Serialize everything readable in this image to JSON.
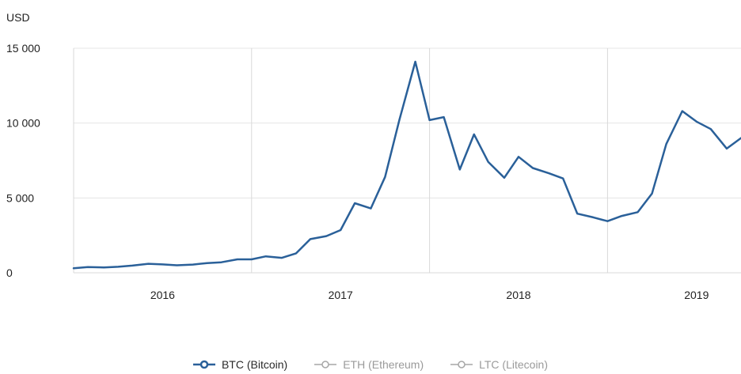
{
  "chart_data": {
    "type": "line",
    "unit_label": "USD",
    "y_ticks": [
      "15 000",
      "10 000",
      "5 000",
      "0"
    ],
    "y_tick_values": [
      15000,
      10000,
      5000,
      0
    ],
    "ylim": [
      0,
      15000
    ],
    "x_ticks": [
      "2016",
      "2017",
      "2018",
      "2019"
    ],
    "x_tick_values": [
      2016.0,
      2017.0,
      2018.0,
      2019.0
    ],
    "xlim": [
      2015.5,
      2019.25
    ],
    "grid": "vertical-and-horizontal",
    "legend_position": "bottom",
    "series": [
      {
        "name": "BTC (Bitcoin)",
        "color": "#2a6099",
        "visible": true,
        "x": [
          2015.5,
          2015.58,
          2015.67,
          2015.75,
          2015.83,
          2015.92,
          2016.0,
          2016.08,
          2016.17,
          2016.25,
          2016.33,
          2016.42,
          2016.5,
          2016.58,
          2016.67,
          2016.75,
          2016.83,
          2016.92,
          2017.0,
          2017.08,
          2017.17,
          2017.25,
          2017.33,
          2017.42,
          2017.5,
          2017.58,
          2017.67,
          2017.75,
          2017.83,
          2017.92,
          2018.0,
          2018.08,
          2018.17,
          2018.25,
          2018.33,
          2018.42,
          2018.5,
          2018.58,
          2018.67,
          2018.75,
          2018.83,
          2018.92,
          2019.0,
          2019.08,
          2019.17,
          2019.25
        ],
        "y": [
          300,
          380,
          360,
          400,
          480,
          600,
          560,
          500,
          550,
          650,
          700,
          900,
          900,
          1100,
          1000,
          1300,
          2250,
          2450,
          2850,
          4650,
          4300,
          6400,
          10200,
          14100,
          10200,
          10400,
          6900,
          9250,
          7400,
          6350,
          7750,
          7000,
          6650,
          6300,
          3950,
          3700,
          3450,
          3800,
          4050,
          5300,
          8600,
          10800,
          10100,
          9600,
          8300,
          9000
        ]
      },
      {
        "name": "ETH (Ethereum)",
        "color": "#a6a6a6",
        "visible": false,
        "x": [],
        "y": []
      },
      {
        "name": "LTC (Litecoin)",
        "color": "#a6a6a6",
        "visible": false,
        "x": [],
        "y": []
      }
    ]
  }
}
